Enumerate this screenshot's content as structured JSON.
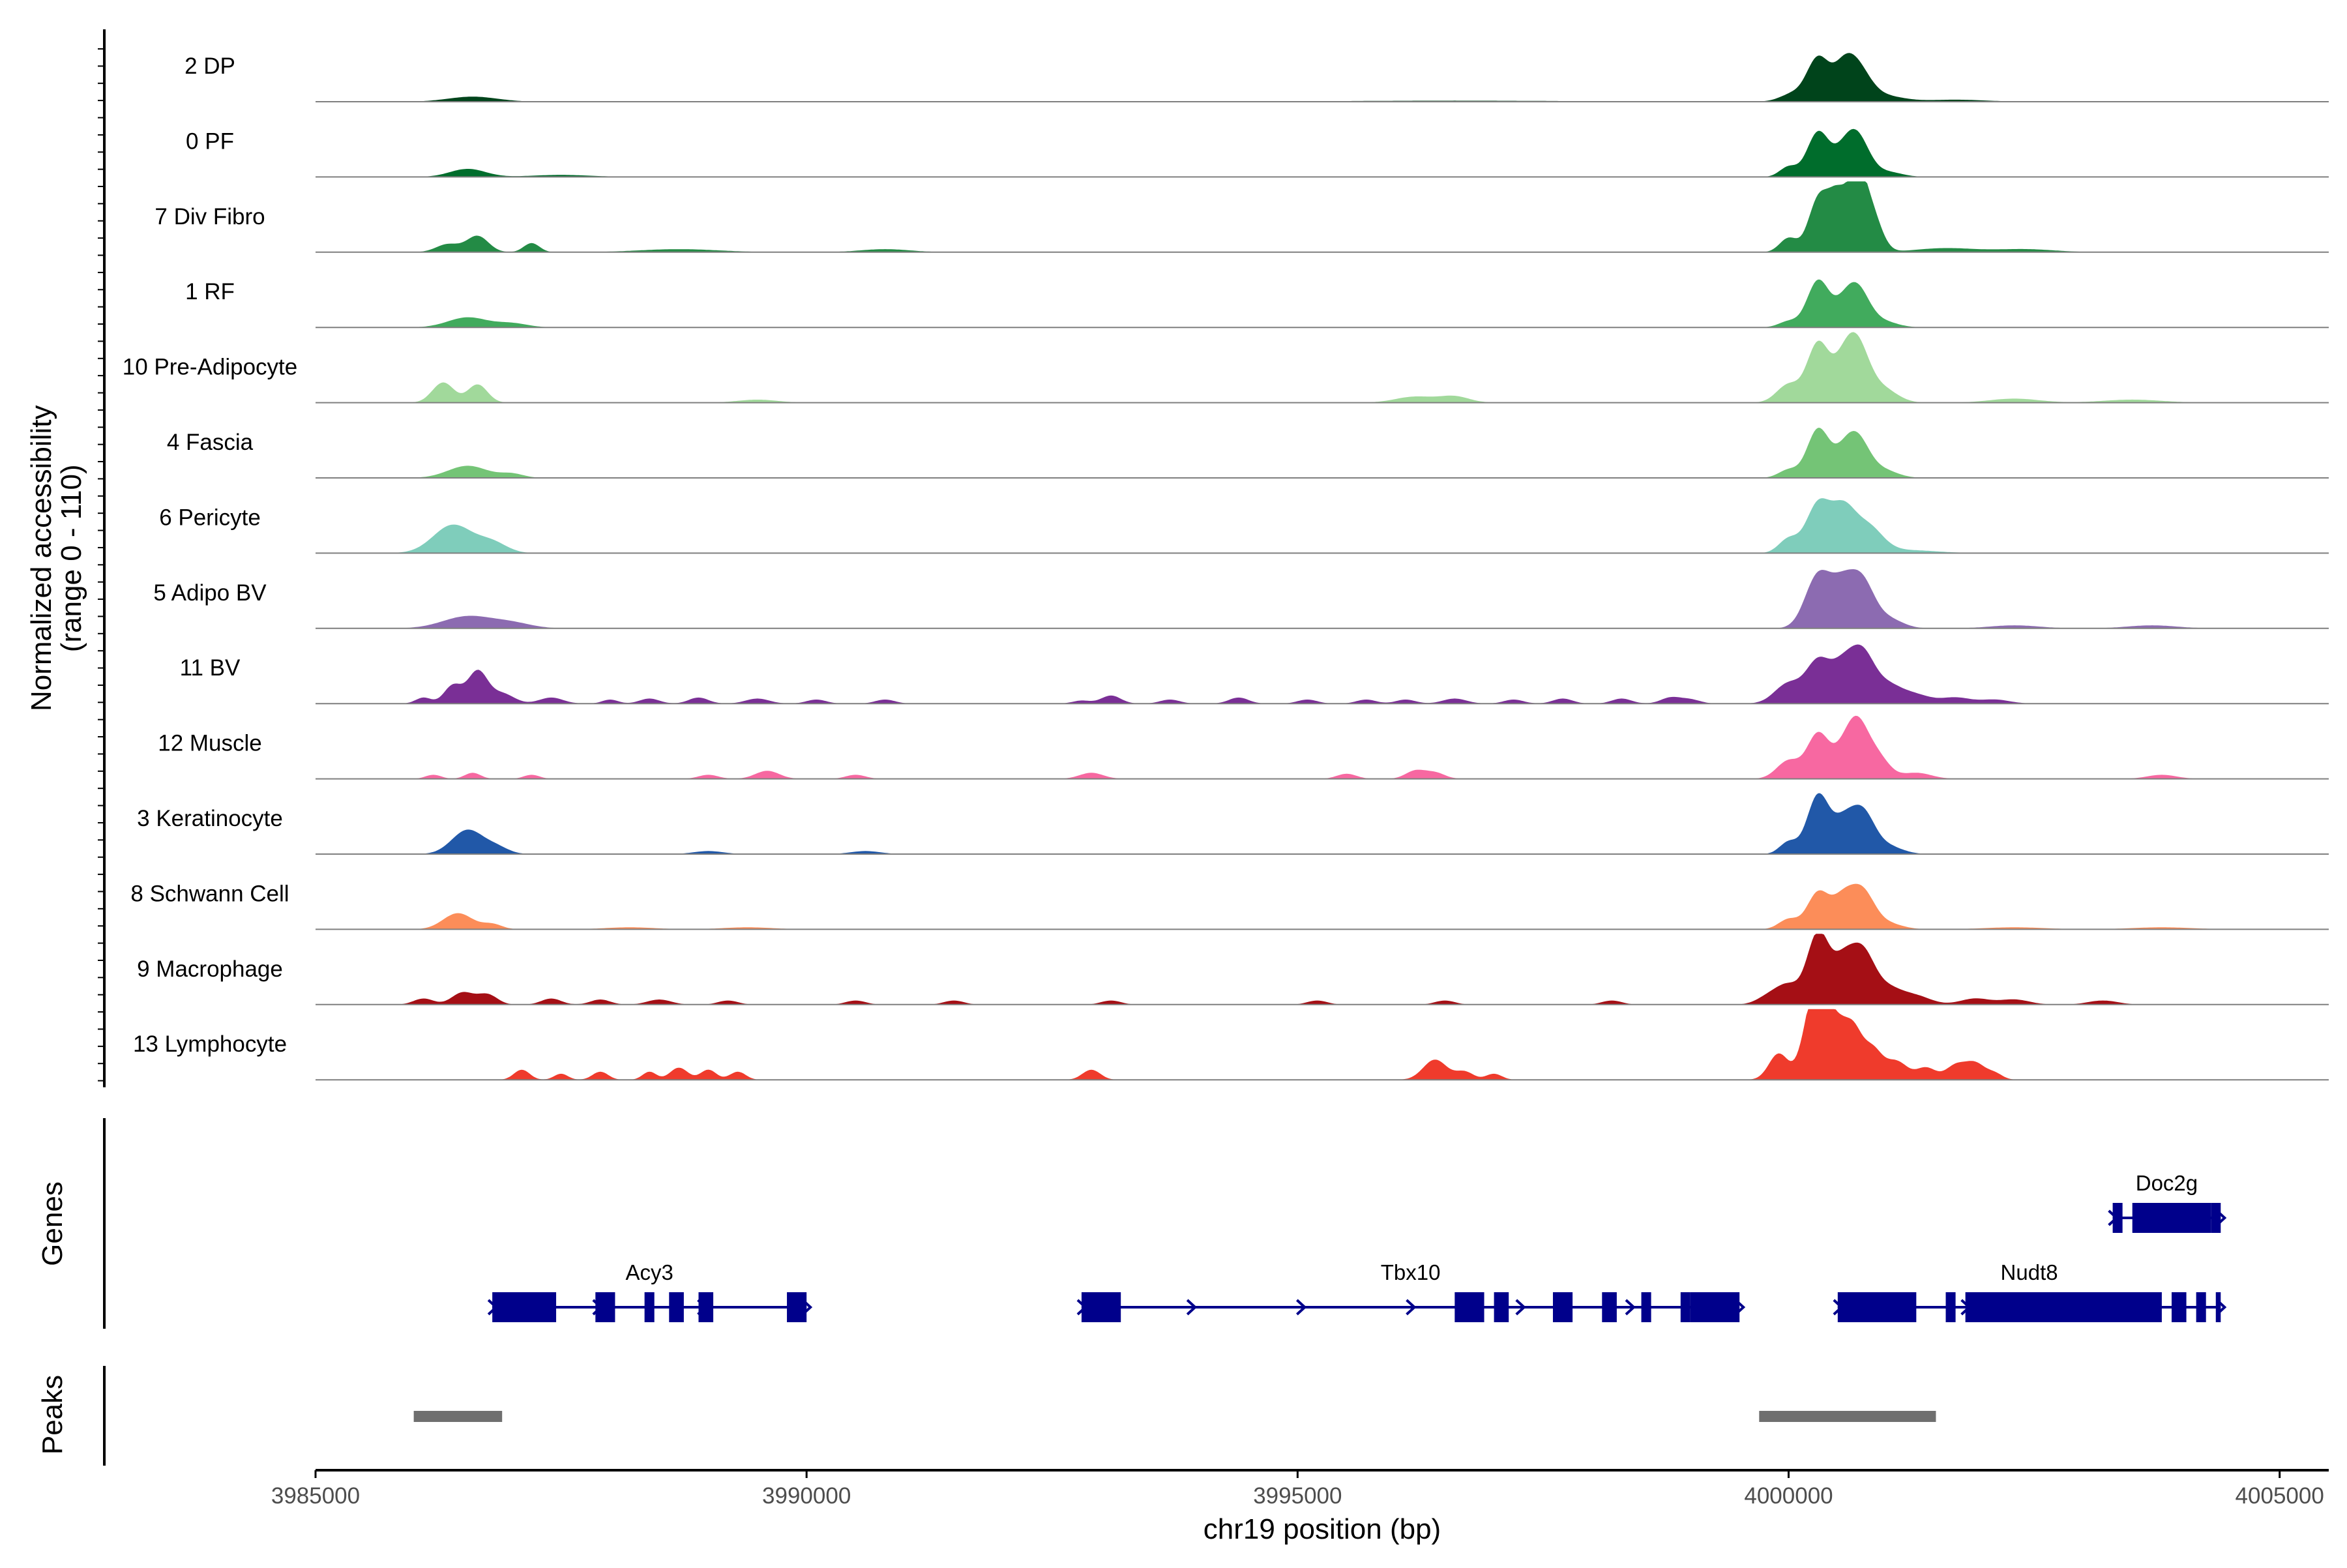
{
  "chart_data": {
    "type": "area",
    "xlabel": "chr19 position (bp)",
    "ylabel": "Normalized accessibility\n(range 0 - 110)",
    "xlim": [
      3985000,
      4005500
    ],
    "ylim": [
      0,
      110
    ],
    "x_ticks": [
      3985000,
      3990000,
      3995000,
      4000000,
      4005000
    ],
    "panel_labels": {
      "genes": "Genes",
      "peaks": "Peaks"
    },
    "tracks": [
      {
        "name": "2 DP",
        "color": "#00441b",
        "peaks": [
          [
            3986600,
            250,
            5
          ],
          [
            3996600,
            1200,
            1
          ],
          [
            4000050,
            130,
            8
          ],
          [
            4000300,
            110,
            42
          ],
          [
            4000550,
            110,
            26
          ],
          [
            4000700,
            130,
            30
          ],
          [
            4000950,
            200,
            6
          ],
          [
            4001700,
            300,
            2
          ]
        ]
      },
      {
        "name": "0 PF",
        "color": "#006d2c",
        "peaks": [
          [
            3986550,
            180,
            8
          ],
          [
            3987500,
            300,
            2
          ],
          [
            4000000,
            90,
            10
          ],
          [
            4000300,
            110,
            44
          ],
          [
            4000550,
            110,
            18
          ],
          [
            4000700,
            120,
            38
          ],
          [
            4001000,
            150,
            5
          ]
        ]
      },
      {
        "name": "7 Div Fibro",
        "color": "#238b45",
        "peaks": [
          [
            3986350,
            120,
            8
          ],
          [
            3986650,
            110,
            16
          ],
          [
            3987200,
            80,
            9
          ],
          [
            3988700,
            400,
            3
          ],
          [
            3990800,
            250,
            3
          ],
          [
            4000000,
            90,
            14
          ],
          [
            4000300,
            100,
            50
          ],
          [
            4000500,
            100,
            54
          ],
          [
            4000700,
            90,
            68
          ],
          [
            4000850,
            100,
            35
          ],
          [
            4001600,
            300,
            4
          ],
          [
            4002400,
            300,
            3
          ]
        ]
      },
      {
        "name": "1 RF",
        "color": "#41ab5d",
        "peaks": [
          [
            3986550,
            200,
            10
          ],
          [
            3987000,
            160,
            4
          ],
          [
            4000000,
            100,
            6
          ],
          [
            4000300,
            110,
            46
          ],
          [
            4000550,
            110,
            16
          ],
          [
            4000700,
            120,
            36
          ],
          [
            4000950,
            150,
            6
          ]
        ]
      },
      {
        "name": "10 Pre-Adipocyte",
        "color": "#a1d99b",
        "peaks": [
          [
            3986300,
            110,
            20
          ],
          [
            3986650,
            100,
            18
          ],
          [
            3989500,
            200,
            3
          ],
          [
            3996200,
            200,
            6
          ],
          [
            3996600,
            150,
            6
          ],
          [
            4000000,
            120,
            18
          ],
          [
            4000300,
            110,
            58
          ],
          [
            4000550,
            110,
            30
          ],
          [
            4000700,
            120,
            52
          ],
          [
            4000950,
            150,
            14
          ],
          [
            4002300,
            250,
            4
          ],
          [
            4003500,
            300,
            3
          ]
        ]
      },
      {
        "name": "4 Fascia",
        "color": "#74c476",
        "peaks": [
          [
            3986550,
            200,
            12
          ],
          [
            3987000,
            120,
            4
          ],
          [
            4000000,
            100,
            8
          ],
          [
            4000300,
            110,
            48
          ],
          [
            4000550,
            110,
            18
          ],
          [
            4000700,
            120,
            36
          ],
          [
            4000950,
            150,
            8
          ]
        ]
      },
      {
        "name": "6 Pericyte",
        "color": "#7fcdbb",
        "peaks": [
          [
            3986400,
            200,
            28
          ],
          [
            3986800,
            150,
            10
          ],
          [
            4000000,
            100,
            14
          ],
          [
            4000300,
            120,
            48
          ],
          [
            4000550,
            120,
            40
          ],
          [
            4000800,
            150,
            26
          ],
          [
            4001200,
            300,
            3
          ]
        ]
      },
      {
        "name": "5 Adipo BV",
        "color": "#8c6bb1",
        "peaks": [
          [
            3986550,
            250,
            12
          ],
          [
            3987000,
            200,
            5
          ],
          [
            4000300,
            130,
            52
          ],
          [
            4000550,
            120,
            38
          ],
          [
            4000750,
            120,
            42
          ],
          [
            4001000,
            150,
            10
          ],
          [
            4002300,
            250,
            3
          ],
          [
            4003700,
            250,
            3
          ]
        ]
      },
      {
        "name": "11 BV",
        "color": "#7a2f96",
        "peaks": [
          [
            3986100,
            80,
            6
          ],
          [
            3986400,
            90,
            18
          ],
          [
            3986650,
            100,
            32
          ],
          [
            3986900,
            120,
            10
          ],
          [
            3987400,
            120,
            6
          ],
          [
            3988000,
            80,
            4
          ],
          [
            3988400,
            100,
            5
          ],
          [
            3988900,
            100,
            6
          ],
          [
            3989500,
            120,
            5
          ],
          [
            3990100,
            100,
            4
          ],
          [
            3990800,
            100,
            4
          ],
          [
            3992800,
            90,
            3
          ],
          [
            3993100,
            100,
            8
          ],
          [
            3993700,
            100,
            4
          ],
          [
            3994400,
            100,
            6
          ],
          [
            3995100,
            100,
            4
          ],
          [
            3995700,
            100,
            4
          ],
          [
            3996100,
            100,
            4
          ],
          [
            3996600,
            120,
            5
          ],
          [
            3997200,
            100,
            4
          ],
          [
            3997700,
            100,
            5
          ],
          [
            3998300,
            100,
            5
          ],
          [
            3998800,
            100,
            6
          ],
          [
            3999000,
            100,
            4
          ],
          [
            4000000,
            140,
            20
          ],
          [
            4000300,
            120,
            40
          ],
          [
            4000550,
            120,
            34
          ],
          [
            4000750,
            120,
            44
          ],
          [
            4001000,
            150,
            18
          ],
          [
            4001300,
            150,
            8
          ],
          [
            4001700,
            150,
            6
          ],
          [
            4002100,
            150,
            4
          ]
        ]
      },
      {
        "name": "12 Muscle",
        "color": "#f768a1",
        "peaks": [
          [
            3986200,
            80,
            4
          ],
          [
            3986600,
            80,
            6
          ],
          [
            3987200,
            80,
            4
          ],
          [
            3989000,
            100,
            4
          ],
          [
            3989600,
            120,
            8
          ],
          [
            3990500,
            100,
            4
          ],
          [
            3992900,
            120,
            6
          ],
          [
            3995500,
            100,
            5
          ],
          [
            3996200,
            100,
            8
          ],
          [
            3996400,
            100,
            6
          ],
          [
            4000000,
            120,
            18
          ],
          [
            4000300,
            110,
            44
          ],
          [
            4000550,
            110,
            22
          ],
          [
            4000700,
            110,
            48
          ],
          [
            4000900,
            120,
            22
          ],
          [
            4001300,
            150,
            6
          ],
          [
            4003800,
            150,
            4
          ]
        ]
      },
      {
        "name": "3 Keratinocyte",
        "color": "#2158a8",
        "peaks": [
          [
            3986550,
            160,
            24
          ],
          [
            3986850,
            120,
            6
          ],
          [
            3989000,
            150,
            3
          ],
          [
            3990600,
            150,
            3
          ],
          [
            4000000,
            90,
            12
          ],
          [
            4000300,
            110,
            58
          ],
          [
            4000550,
            110,
            28
          ],
          [
            4000750,
            120,
            40
          ],
          [
            4001000,
            150,
            8
          ]
        ]
      },
      {
        "name": "8 Schwann Cell",
        "color": "#fc8d59",
        "peaks": [
          [
            3986450,
            150,
            16
          ],
          [
            3986800,
            100,
            5
          ],
          [
            3988200,
            250,
            2
          ],
          [
            3989400,
            250,
            2
          ],
          [
            4000000,
            100,
            10
          ],
          [
            4000300,
            110,
            36
          ],
          [
            4000550,
            110,
            28
          ],
          [
            4000750,
            120,
            36
          ],
          [
            4001000,
            150,
            6
          ],
          [
            4002300,
            300,
            2
          ],
          [
            4003800,
            300,
            2
          ]
        ]
      },
      {
        "name": "9 Macrophage",
        "color": "#a50f15",
        "peaks": [
          [
            3986100,
            100,
            6
          ],
          [
            3986500,
            110,
            12
          ],
          [
            3986750,
            100,
            10
          ],
          [
            3987400,
            100,
            6
          ],
          [
            3987900,
            100,
            5
          ],
          [
            3988500,
            120,
            5
          ],
          [
            3989200,
            100,
            4
          ],
          [
            3990500,
            100,
            4
          ],
          [
            3991500,
            100,
            4
          ],
          [
            3993100,
            100,
            4
          ],
          [
            3995200,
            100,
            4
          ],
          [
            3996500,
            100,
            4
          ],
          [
            3998200,
            100,
            4
          ],
          [
            3999800,
            120,
            8
          ],
          [
            4000000,
            120,
            18
          ],
          [
            4000300,
            110,
            70
          ],
          [
            4000550,
            110,
            38
          ],
          [
            4000750,
            120,
            48
          ],
          [
            4001000,
            150,
            16
          ],
          [
            4001300,
            150,
            8
          ],
          [
            4001900,
            150,
            6
          ],
          [
            4002300,
            150,
            5
          ],
          [
            4003200,
            150,
            4
          ]
        ]
      },
      {
        "name": "13 Lymphocyte",
        "color": "#ef3b2c",
        "peaks": [
          [
            3987100,
            80,
            10
          ],
          [
            3987500,
            70,
            6
          ],
          [
            3987900,
            80,
            8
          ],
          [
            3988400,
            70,
            8
          ],
          [
            3988700,
            90,
            12
          ],
          [
            3989000,
            80,
            10
          ],
          [
            3989300,
            80,
            8
          ],
          [
            3992900,
            90,
            10
          ],
          [
            3996400,
            120,
            20
          ],
          [
            3996700,
            90,
            8
          ],
          [
            3997000,
            80,
            6
          ],
          [
            3999900,
            100,
            26
          ],
          [
            4000200,
            90,
            42
          ],
          [
            4000330,
            90,
            90
          ],
          [
            4000500,
            80,
            40
          ],
          [
            4000650,
            90,
            48
          ],
          [
            4000850,
            100,
            30
          ],
          [
            4001100,
            110,
            18
          ],
          [
            4001400,
            100,
            12
          ],
          [
            4001700,
            100,
            14
          ],
          [
            4001900,
            100,
            16
          ],
          [
            4002100,
            80,
            6
          ]
        ]
      }
    ],
    "genes": [
      {
        "name": "Acy3",
        "start": 3986800,
        "end": 3990000,
        "strand": "+",
        "row": 2,
        "exons": [
          [
            3986800,
            3987450
          ],
          [
            3987850,
            3988050
          ],
          [
            3988350,
            3988450
          ],
          [
            3988600,
            3988750
          ],
          [
            3988900,
            3989050
          ],
          [
            3989800,
            3990000
          ]
        ]
      },
      {
        "name": "Tbx10",
        "start": 3992800,
        "end": 3999500,
        "strand": "+",
        "row": 2,
        "exons": [
          [
            3992800,
            3993200
          ],
          [
            3996600,
            3996900
          ],
          [
            3997000,
            3997150
          ],
          [
            3997600,
            3997800
          ],
          [
            3998100,
            3998250
          ],
          [
            3998500,
            3998600
          ],
          [
            3998900,
            3999000
          ],
          [
            3999000,
            3999500
          ]
        ]
      },
      {
        "name": "Nudt8",
        "start": 4000500,
        "end": 4004400,
        "strand": "+",
        "row": 2,
        "exons": [
          [
            4000500,
            4001300
          ],
          [
            4001600,
            4001700
          ],
          [
            4001800,
            4003800
          ],
          [
            4003900,
            4004050
          ],
          [
            4004150,
            4004250
          ],
          [
            4004350,
            4004400
          ]
        ]
      },
      {
        "name": "Doc2g",
        "start": 4003300,
        "end": 4004400,
        "strand": "+",
        "row": 1,
        "exons": [
          [
            4003300,
            4003400
          ],
          [
            4003500,
            4004300
          ],
          [
            4004300,
            4004400
          ]
        ]
      }
    ],
    "peaks": [
      [
        3986000,
        3986900
      ],
      [
        3999700,
        4001500
      ]
    ]
  }
}
